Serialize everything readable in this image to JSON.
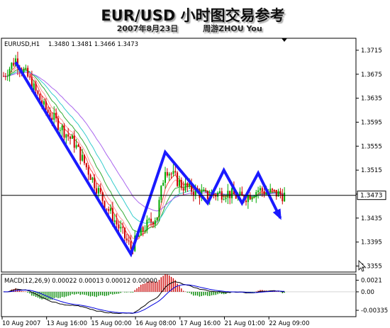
{
  "header": {
    "title": "EUR/USD 小时图交易参考",
    "subtitle_date": "2007年8月23日",
    "subtitle_author": "周游ZHOU You"
  },
  "chart_data": [
    {
      "type": "candlestick",
      "symbol_label": "EURUSD,H1",
      "ohlc_label": "1.3480 1.3481 1.3466 1.3473",
      "current_price": 1.3473,
      "current_price_label": "1.3473",
      "ylim": [
        1.3345,
        1.3735
      ],
      "y_ticks": [
        "1.3715",
        "1.3675",
        "1.3635",
        "1.3595",
        "1.3555",
        "1.3515",
        "1.3475",
        "1.3435",
        "1.3395",
        "1.3355"
      ],
      "x_ticks": [
        "10 Aug 2007",
        "13 Aug 16:00",
        "15 Aug 00:00",
        "16 Aug 08:00",
        "17 Aug 16:00",
        "21 Aug 01:00",
        "22 Aug 09:00"
      ],
      "grid": false,
      "trend_line": [
        {
          "index": 6,
          "price": 1.3695
        },
        {
          "index": 63,
          "price": 1.3375
        },
        {
          "index": 80,
          "price": 1.3545
        },
        {
          "index": 101,
          "price": 1.346
        },
        {
          "index": 109,
          "price": 1.3515
        },
        {
          "index": 118,
          "price": 1.346
        },
        {
          "index": 126,
          "price": 1.351
        },
        {
          "index": 137,
          "price": 1.3435
        }
      ],
      "colors": {
        "up_candle": "#00aa00",
        "down_candle": "#cc0000",
        "trend_line": "#1a1aff",
        "ma_red": "#ff4444",
        "ma_salmon": "#ff9999",
        "ma_green": "#33aa33",
        "ma_cyan": "#33cccc",
        "ma_violet": "#aa66ee"
      }
    },
    {
      "type": "macd",
      "label": "MACD(12,26,9) 0.00022 0.00013 0.00012 0.00000",
      "ylim": [
        -0.0045,
        0.0032
      ],
      "y_ticks": [
        "0.0021",
        "0.00",
        "-0.00335"
      ],
      "colors": {
        "histogram_up": "#cc0000",
        "histogram_down": "#008800",
        "line_main": "#000000",
        "line_signal": "#0000dd"
      }
    }
  ]
}
